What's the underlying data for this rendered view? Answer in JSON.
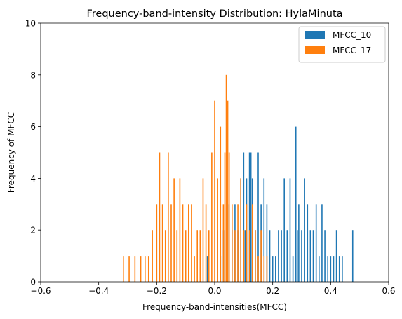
{
  "chart_data": {
    "type": "bar",
    "title": "Frequency-band-intensity Distribution: HylaMinuta",
    "xlabel": "Frequency-band-intensities(MFCC)",
    "ylabel": "Frequency of MFCC",
    "xlim": [
      -0.6,
      0.6
    ],
    "ylim": [
      0,
      10
    ],
    "xticks": [
      "−0.6",
      "−0.4",
      "−0.2",
      "0.0",
      "0.2",
      "0.4",
      "0.6"
    ],
    "yticks": [
      "0",
      "2",
      "4",
      "6",
      "8",
      "10"
    ],
    "grid": false,
    "legend_position": "top-right",
    "series": [
      {
        "name": "MFCC_10",
        "color": "#1f77b4",
        "x": [
          -0.025,
          0.01,
          0.02,
          0.03,
          0.05,
          0.06,
          0.07,
          0.08,
          0.09,
          0.1,
          0.105,
          0.11,
          0.12,
          0.125,
          0.13,
          0.14,
          0.15,
          0.16,
          0.17,
          0.18,
          0.19,
          0.2,
          0.21,
          0.22,
          0.23,
          0.24,
          0.25,
          0.26,
          0.27,
          0.28,
          0.285,
          0.29,
          0.3,
          0.31,
          0.32,
          0.33,
          0.34,
          0.35,
          0.36,
          0.37,
          0.38,
          0.39,
          0.4,
          0.41,
          0.42,
          0.43,
          0.44,
          0.476
        ],
        "values": [
          1,
          2,
          1,
          2,
          3,
          2,
          3,
          2,
          4,
          5,
          2,
          4,
          5,
          5,
          4,
          2,
          5,
          3,
          4,
          3,
          2,
          1,
          1,
          2,
          2,
          4,
          2,
          4,
          1,
          6,
          2,
          3,
          2,
          4,
          3,
          2,
          2,
          3,
          1,
          3,
          2,
          1,
          1,
          1,
          2,
          1,
          1,
          2
        ]
      },
      {
        "name": "MFCC_17",
        "color": "#ff7f0e",
        "x": [
          -0.315,
          -0.295,
          -0.275,
          -0.255,
          -0.24,
          -0.228,
          -0.215,
          -0.2,
          -0.19,
          -0.18,
          -0.17,
          -0.16,
          -0.15,
          -0.14,
          -0.13,
          -0.12,
          -0.11,
          -0.1,
          -0.09,
          -0.08,
          -0.07,
          -0.06,
          -0.05,
          -0.04,
          -0.03,
          -0.02,
          -0.01,
          0.0,
          0.01,
          0.02,
          0.03,
          0.035,
          0.04,
          0.045,
          0.05,
          0.06,
          0.07,
          0.08,
          0.09,
          0.1,
          0.11,
          0.12,
          0.13,
          0.14,
          0.15,
          0.16,
          0.17,
          0.18
        ],
        "values": [
          1,
          1,
          1,
          1,
          1,
          1,
          2,
          3,
          5,
          3,
          2,
          5,
          3,
          4,
          2,
          4,
          3,
          2,
          3,
          3,
          1,
          2,
          2,
          4,
          3,
          2,
          5,
          7,
          4,
          6,
          3,
          5,
          8,
          7,
          5,
          3,
          2,
          3,
          4,
          2,
          3,
          2,
          3,
          2,
          1,
          2,
          1,
          1
        ]
      }
    ]
  }
}
